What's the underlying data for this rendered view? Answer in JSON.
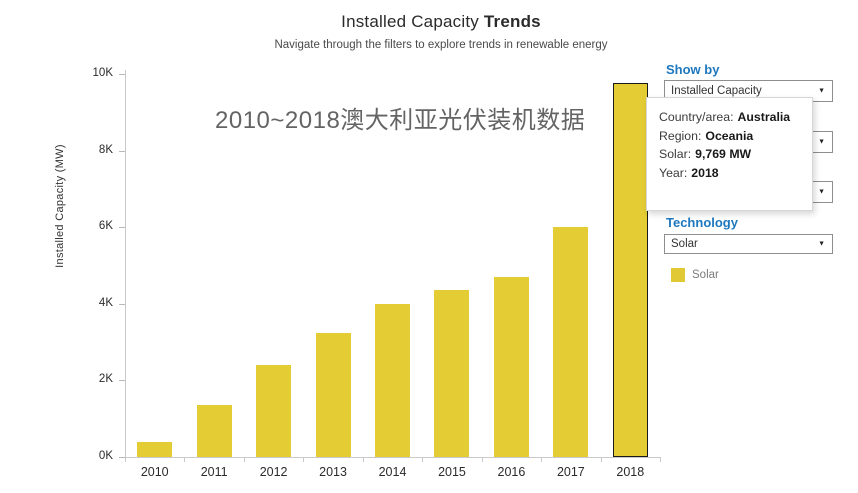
{
  "header": {
    "title_regular": "Installed Capacity ",
    "title_bold": "Trends",
    "subtitle": "Navigate through the filters to explore trends in renewable energy"
  },
  "chart_data": {
    "type": "bar",
    "title": "Installed Capacity Trends",
    "annotation": "2010~2018澳大利亚光伏装机数据",
    "categories": [
      "2010",
      "2011",
      "2012",
      "2013",
      "2014",
      "2015",
      "2016",
      "2017",
      "2018"
    ],
    "series": [
      {
        "name": "Solar",
        "values": [
          380,
          1350,
          2400,
          3250,
          4000,
          4350,
          4700,
          6000,
          9769
        ]
      }
    ],
    "xlabel": "",
    "ylabel": "Installed Capacity (MW)",
    "ylim": [
      0,
      10000
    ],
    "ytick_values": [
      0,
      2000,
      4000,
      6000,
      8000,
      10000
    ],
    "ytick_labels": [
      "0K",
      "2K",
      "4K",
      "6K",
      "8K",
      "10K"
    ],
    "grid": false,
    "legend_position": "right",
    "bar_color": "#e3cc34",
    "highlighted_category": "2018",
    "highlight_border_color": "#1a1a1a"
  },
  "tooltip": {
    "rows": [
      {
        "label": "Country/area:",
        "value": "Australia"
      },
      {
        "label": "Region:",
        "value": "Oceania"
      },
      {
        "label": "Solar:",
        "value": "9,769 MW"
      },
      {
        "label": "Year:",
        "value": "2018"
      }
    ]
  },
  "filters": {
    "show_by_label": "Show by",
    "show_by_value": "Installed Capacity",
    "technology_label": "Technology",
    "technology_value": "Solar"
  },
  "legend": {
    "label": "Solar",
    "swatch_color": "#e0c934"
  },
  "colors": {
    "accent_blue": "#1e78be",
    "bar_yellow": "#e3cc34",
    "axis_gray": "#c9c9c9"
  }
}
